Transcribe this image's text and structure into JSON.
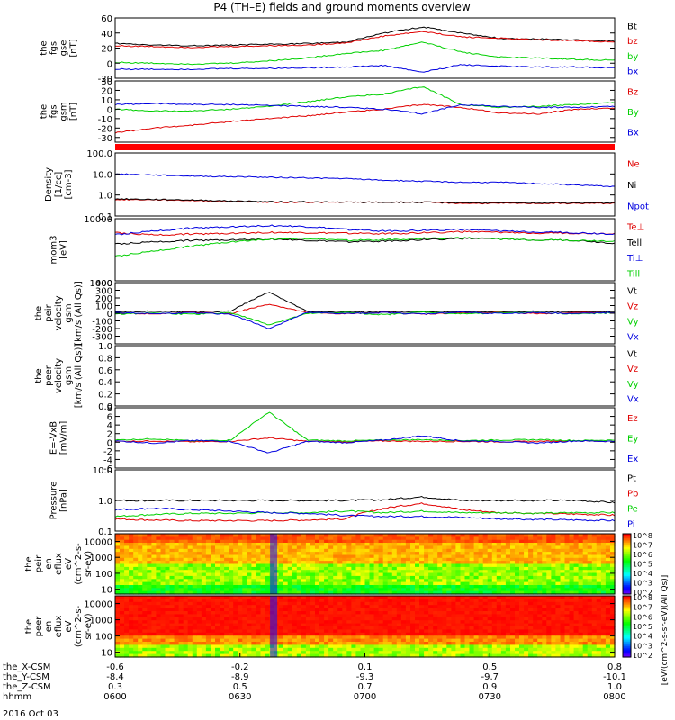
{
  "title": "P4 (TH–E) fields and ground moments overview",
  "date_label": "2016 Oct 03",
  "colors": {
    "black": "#000000",
    "red": "#e00000",
    "green": "#00d000",
    "blue": "#0000e0"
  },
  "chart_data": [
    {
      "type": "line",
      "ylabel": [
        "the",
        "fgs",
        "gse",
        "[nT]"
      ],
      "ylim": [
        -20,
        60
      ],
      "y_ticks": [
        "-20",
        "0",
        "20",
        "40",
        "60"
      ],
      "series": [
        {
          "name": "Bt",
          "color": "black",
          "values": [
            26,
            24,
            23,
            24,
            25,
            26,
            28,
            40,
            48,
            40,
            33,
            32,
            31,
            29
          ]
        },
        {
          "name": "bz",
          "color": "red",
          "values": [
            23,
            22,
            21,
            22,
            23,
            24,
            27,
            36,
            42,
            35,
            33,
            31,
            30,
            28
          ]
        },
        {
          "name": "by",
          "color": "green",
          "values": [
            1,
            0,
            -1,
            0,
            3,
            7,
            13,
            17,
            28,
            15,
            8,
            7,
            5,
            4
          ]
        },
        {
          "name": "bx",
          "color": "blue",
          "values": [
            -8,
            -8,
            -8,
            -7,
            -7,
            -6,
            -5,
            -3,
            -12,
            -2,
            -4,
            -5,
            -5,
            -6
          ]
        }
      ]
    },
    {
      "type": "line",
      "ylabel": [
        "the",
        "fgs",
        "gsm",
        "[nT]"
      ],
      "ylim": [
        -35,
        30
      ],
      "y_ticks": [
        "-30",
        "-20",
        "-10",
        "0",
        "10",
        "20",
        "30"
      ],
      "series": [
        {
          "name": "Bz",
          "color": "red",
          "values": [
            -25,
            -20,
            -17,
            -13,
            -10,
            -7,
            -3,
            0,
            5,
            2,
            -4,
            -5,
            0,
            1
          ]
        },
        {
          "name": "By",
          "color": "green",
          "values": [
            0,
            -2,
            -2,
            0,
            3,
            8,
            13,
            16,
            24,
            5,
            2,
            3,
            5,
            7
          ]
        },
        {
          "name": "Bx",
          "color": "blue",
          "values": [
            5,
            6,
            5,
            5,
            4,
            3,
            2,
            0,
            -5,
            5,
            3,
            2,
            2,
            3
          ]
        }
      ]
    },
    {
      "type": "line",
      "ylabel": [
        "Density",
        "[1/cc]",
        "[cm-3]"
      ],
      "yscale": "log",
      "ylim": [
        0.1,
        100
      ],
      "y_ticks": [
        "0.1",
        "1.0",
        "10.0",
        "100.0"
      ],
      "series": [
        {
          "name": "Ne",
          "color": "red",
          "values": [
            0.6,
            0.6,
            0.55,
            0.5,
            0.45,
            0.45,
            0.45,
            0.45,
            0.45,
            0.4,
            0.4,
            0.4,
            0.4,
            0.4
          ]
        },
        {
          "name": "Ni",
          "color": "black",
          "values": [
            0.65,
            0.62,
            0.58,
            0.52,
            0.48,
            0.47,
            0.45,
            0.45,
            0.45,
            0.43,
            0.42,
            0.42,
            0.42,
            0.42
          ]
        },
        {
          "name": "Npot",
          "color": "blue",
          "values": [
            10,
            9,
            8,
            7.5,
            7,
            6.5,
            6,
            5,
            4.5,
            4,
            4,
            3.5,
            3,
            2.5
          ]
        }
      ]
    },
    {
      "type": "line",
      "ylabel": [
        "mom3",
        "[eV]"
      ],
      "yscale": "log",
      "ylim": [
        100,
        10000
      ],
      "y_ticks": [
        "10000"
      ],
      "series": [
        {
          "name": "Te⊥",
          "color": "red",
          "values": [
            3500,
            3000,
            3200,
            3400,
            3600,
            3500,
            3400,
            3300,
            3500,
            3800,
            3600,
            3500,
            3400,
            3300
          ]
        },
        {
          "name": "Tell",
          "color": "black",
          "values": [
            1500,
            1800,
            2000,
            2100,
            2200,
            2000,
            1800,
            1900,
            2100,
            2300,
            2200,
            2100,
            2000,
            1600
          ]
        },
        {
          "name": "Ti⊥",
          "color": "blue",
          "values": [
            3000,
            4000,
            5000,
            5500,
            6000,
            5500,
            4500,
            4000,
            4200,
            4500,
            4000,
            3800,
            3500,
            3200
          ]
        },
        {
          "name": "Till",
          "color": "green",
          "values": [
            600,
            900,
            1300,
            1800,
            2200,
            2300,
            2000,
            2100,
            2300,
            2400,
            2200,
            2100,
            2000,
            1900
          ]
        }
      ]
    },
    {
      "type": "line",
      "ylabel": [
        "the",
        "peir",
        "velocity",
        "gsm",
        "[km/s (All Qs)]"
      ],
      "ylim": [
        -400,
        400
      ],
      "y_ticks": [
        "-300",
        "-200",
        "-100",
        "0",
        "100",
        "200",
        "300",
        "400"
      ],
      "y_top_label": "1000",
      "series": [
        {
          "name": "Vt",
          "color": "black",
          "values": [
            20,
            25,
            15,
            30,
            280,
            20,
            15,
            18,
            20,
            22,
            20,
            25,
            18,
            20
          ]
        },
        {
          "name": "Vz",
          "color": "red",
          "values": [
            5,
            -10,
            10,
            -5,
            120,
            5,
            -8,
            10,
            -12,
            5,
            10,
            -5,
            8,
            5
          ]
        },
        {
          "name": "Vy",
          "color": "green",
          "values": [
            -10,
            5,
            -15,
            10,
            -150,
            -5,
            10,
            -20,
            15,
            -8,
            5,
            10,
            -10,
            5
          ]
        },
        {
          "name": "Vx",
          "color": "blue",
          "values": [
            10,
            -5,
            5,
            -10,
            -200,
            10,
            -5,
            8,
            -10,
            15,
            -5,
            8,
            -5,
            10
          ]
        }
      ]
    },
    {
      "type": "line",
      "ylabel": [
        "the",
        "peer",
        "velocity",
        "gsm",
        "[km/s (All Qs)]"
      ],
      "ylim": [
        0,
        1
      ],
      "y_ticks": [
        "0.0",
        "0.2",
        "0.4",
        "0.6",
        "0.8",
        "1.0"
      ],
      "series": [
        {
          "name": "Vt",
          "color": "black",
          "values": []
        },
        {
          "name": "Vz",
          "color": "red",
          "values": []
        },
        {
          "name": "Vy",
          "color": "green",
          "values": []
        },
        {
          "name": "Vx",
          "color": "blue",
          "values": []
        }
      ]
    },
    {
      "type": "line",
      "ylabel": [
        "E=-VxB",
        "[mV/m]"
      ],
      "ylim": [
        -6,
        8
      ],
      "y_ticks": [
        "-6",
        "-4",
        "-2",
        "0",
        "2",
        "4",
        "6",
        "8"
      ],
      "series": [
        {
          "name": "Ez",
          "color": "red",
          "values": [
            0.2,
            0.3,
            0.1,
            0.2,
            1.0,
            0.2,
            0.1,
            0.3,
            0.2,
            0.2,
            0.1,
            0.2,
            0.3,
            0.2
          ]
        },
        {
          "name": "Ey",
          "color": "green",
          "values": [
            0.5,
            0.8,
            0.3,
            0.5,
            7.0,
            0.5,
            0.3,
            0.5,
            0.6,
            0.4,
            0.5,
            0.6,
            0.4,
            0.5
          ]
        },
        {
          "name": "Ex",
          "color": "blue",
          "values": [
            0.3,
            -0.2,
            0.4,
            0.2,
            -2.5,
            0.2,
            -0.1,
            0.5,
            1.5,
            0.3,
            0.2,
            -0.2,
            0.3,
            0.2
          ]
        }
      ]
    },
    {
      "type": "line",
      "ylabel": [
        "Pressure",
        "[nPa]"
      ],
      "yscale": "log",
      "ylim": [
        0.1,
        10
      ],
      "y_ticks": [
        "0.1",
        "1.0",
        "10.0"
      ],
      "series": [
        {
          "name": "Pt",
          "color": "black",
          "values": [
            1.0,
            1.0,
            1.0,
            1.0,
            1.0,
            1.0,
            1.0,
            1.05,
            1.3,
            1.0,
            1.0,
            1.0,
            1.0,
            0.85
          ]
        },
        {
          "name": "Pb",
          "color": "red",
          "values": [
            0.25,
            0.23,
            0.22,
            0.22,
            0.22,
            0.23,
            0.25,
            0.55,
            0.8,
            0.5,
            0.4,
            0.38,
            0.36,
            0.33
          ]
        },
        {
          "name": "Pe",
          "color": "green",
          "values": [
            0.3,
            0.35,
            0.38,
            0.38,
            0.4,
            0.4,
            0.45,
            0.4,
            0.45,
            0.4,
            0.4,
            0.38,
            0.4,
            0.4
          ]
        },
        {
          "name": "Pi",
          "color": "blue",
          "values": [
            0.5,
            0.55,
            0.5,
            0.45,
            0.4,
            0.38,
            0.32,
            0.3,
            0.3,
            0.28,
            0.25,
            0.24,
            0.23,
            0.22
          ]
        }
      ]
    },
    {
      "type": "heatmap",
      "ylabel": [
        "the",
        "peir",
        "en",
        "eflux",
        "eV",
        "(cm^2-s-",
        "sr-eV)"
      ],
      "yscale": "log",
      "ylim": [
        5,
        30000
      ],
      "y_ticks": [
        "10",
        "100",
        "1000",
        "10000"
      ]
    },
    {
      "type": "heatmap",
      "ylabel": [
        "the",
        "peer",
        "en",
        "eflux",
        "eV",
        "(cm^2-s-",
        "sr-eV)"
      ],
      "yscale": "log",
      "ylim": [
        5,
        30000
      ],
      "y_ticks": [
        "10",
        "100",
        "1000",
        "10000"
      ]
    }
  ],
  "colorbar": {
    "label": "[eV/(cm^2-s-sr-eV)(All Qs)]",
    "ticks": [
      "10^8",
      "10^7",
      "10^6",
      "10^5",
      "10^4",
      "10^3",
      "10^2"
    ]
  },
  "x_axis": {
    "rows": [
      {
        "label": "the_X-CSM",
        "values": [
          "-0.6",
          "-0.2",
          "0.1",
          "0.5",
          "0.8"
        ]
      },
      {
        "label": "the_Y-CSM",
        "values": [
          "-8.4",
          "-8.9",
          "-9.3",
          "-9.7",
          "-10.1"
        ]
      },
      {
        "label": "the_Z-CSM",
        "values": [
          "0.3",
          "0.5",
          "0.7",
          "0.9",
          "1.0"
        ]
      },
      {
        "label": "hhmm",
        "values": [
          "0600",
          "0630",
          "0700",
          "0730",
          "0800"
        ]
      }
    ]
  }
}
